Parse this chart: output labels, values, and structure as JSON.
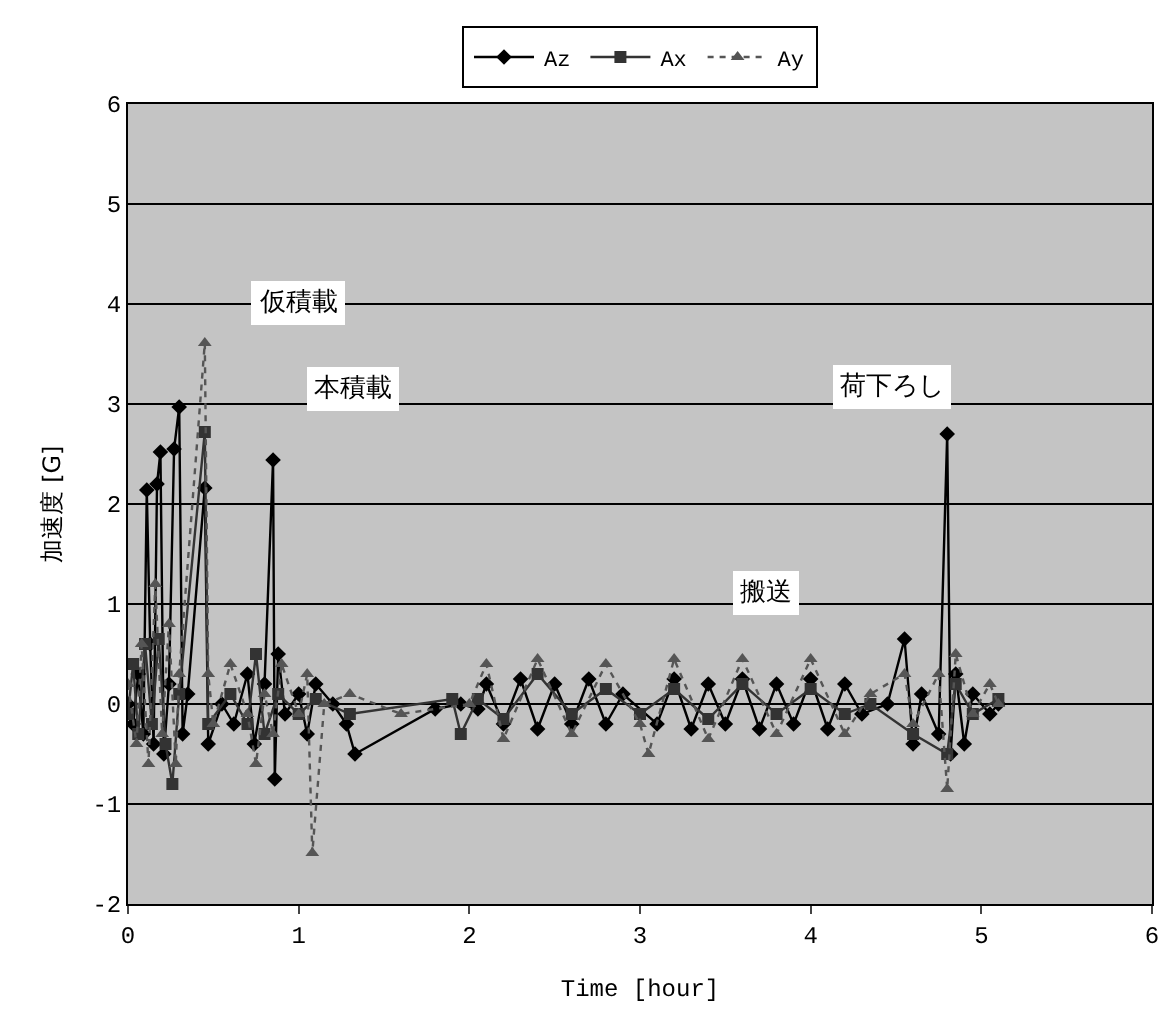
{
  "chart_data": {
    "type": "line",
    "xlabel": "Time [hour]",
    "ylabel": "加速度 [G]",
    "xlim": [
      0,
      6
    ],
    "xticks": [
      0,
      1,
      2,
      3,
      4,
      5,
      6
    ],
    "ylim": [
      -2,
      6
    ],
    "yticks": [
      -2,
      -1,
      0,
      1,
      2,
      3,
      4,
      5,
      6
    ],
    "grid": "y",
    "legend": "top",
    "annotations": [
      "仮積載",
      "本積載",
      "荷下ろし",
      "搬送"
    ],
    "series": [
      {
        "name": "Az",
        "color": "#000000",
        "marker": "diamond",
        "line_style": "solid",
        "x": [
          0,
          0.03,
          0.06,
          0.09,
          0.11,
          0.13,
          0.15,
          0.17,
          0.19,
          0.21,
          0.24,
          0.27,
          0.3,
          0.32,
          0.35,
          0.45,
          0.47,
          0.55,
          0.62,
          0.7,
          0.74,
          0.8,
          0.85,
          0.86,
          0.88,
          0.92,
          1,
          1.05,
          1.1,
          1.2,
          1.28,
          1.33,
          1.8,
          1.95,
          2.05,
          2.1,
          2.2,
          2.3,
          2.4,
          2.5,
          2.6,
          2.7,
          2.8,
          2.9,
          3.1,
          3.2,
          3.3,
          3.4,
          3.5,
          3.6,
          3.7,
          3.8,
          3.9,
          4,
          4.1,
          4.2,
          4.3,
          4.45,
          4.55,
          4.6,
          4.65,
          4.75,
          4.8,
          4.82,
          4.85,
          4.9,
          4.95,
          5.05,
          5.1
        ],
        "values": [
          0,
          -0.2,
          0.3,
          -0.3,
          2.14,
          0.6,
          -0.4,
          2.2,
          2.52,
          -0.5,
          0.2,
          2.55,
          2.97,
          -0.3,
          0.1,
          2.16,
          -0.4,
          0,
          -0.2,
          0.3,
          -0.4,
          0.2,
          2.44,
          -0.75,
          0.5,
          -0.1,
          0.1,
          -0.3,
          0.2,
          0,
          -0.2,
          -0.5,
          -0.05,
          0,
          -0.05,
          0.2,
          -0.2,
          0.25,
          -0.25,
          0.2,
          -0.2,
          0.25,
          -0.2,
          0.1,
          -0.2,
          0.25,
          -0.25,
          0.2,
          -0.2,
          0.25,
          -0.25,
          0.2,
          -0.2,
          0.25,
          -0.25,
          0.2,
          -0.1,
          0,
          0.65,
          -0.4,
          0.1,
          -0.3,
          2.7,
          -0.5,
          0.3,
          -0.4,
          0.1,
          -0.1,
          0
        ]
      },
      {
        "name": "Ax",
        "color": "#333333",
        "marker": "square",
        "line_style": "solid",
        "x": [
          0,
          0.03,
          0.06,
          0.1,
          0.14,
          0.18,
          0.22,
          0.26,
          0.3,
          0.45,
          0.47,
          0.6,
          0.7,
          0.75,
          0.8,
          0.88,
          1,
          1.1,
          1.3,
          1.9,
          1.95,
          2.05,
          2.2,
          2.4,
          2.6,
          2.8,
          3,
          3.2,
          3.4,
          3.6,
          3.8,
          4,
          4.2,
          4.35,
          4.6,
          4.8,
          4.85,
          4.95,
          5.1
        ],
        "values": [
          -0.1,
          0.4,
          -0.3,
          0.6,
          -0.2,
          0.65,
          -0.4,
          -0.8,
          0.1,
          2.72,
          -0.2,
          0.1,
          -0.2,
          0.5,
          -0.3,
          0.1,
          -0.1,
          0.05,
          -0.1,
          0.05,
          -0.3,
          0.05,
          -0.15,
          0.3,
          -0.1,
          0.15,
          -0.1,
          0.15,
          -0.15,
          0.2,
          -0.1,
          0.15,
          -0.1,
          0,
          -0.3,
          -0.5,
          0.2,
          -0.1,
          0.05
        ]
      },
      {
        "name": "Ay",
        "color": "#555555",
        "marker": "triangle",
        "line_style": "dotted",
        "x": [
          0,
          0.05,
          0.08,
          0.12,
          0.16,
          0.2,
          0.24,
          0.28,
          0.3,
          0.45,
          0.47,
          0.5,
          0.6,
          0.7,
          0.75,
          0.8,
          0.85,
          0.9,
          1,
          1.05,
          1.08,
          1.15,
          1.3,
          1.6,
          2,
          2.1,
          2.2,
          2.4,
          2.6,
          2.8,
          3,
          3.05,
          3.2,
          3.4,
          3.6,
          3.8,
          4,
          4.2,
          4.35,
          4.55,
          4.6,
          4.75,
          4.8,
          4.85,
          4.95,
          5.05,
          5.1
        ],
        "values": [
          0.2,
          -0.4,
          0.6,
          -0.6,
          1.2,
          -0.3,
          0.8,
          -0.6,
          0.3,
          3.61,
          0.3,
          -0.2,
          0.4,
          -0.1,
          -0.6,
          0.1,
          -0.3,
          0.4,
          -0.1,
          0.3,
          -1.49,
          0,
          0.1,
          -0.1,
          0,
          0.4,
          -0.35,
          0.45,
          -0.3,
          0.4,
          -0.2,
          -0.5,
          0.45,
          -0.35,
          0.45,
          -0.3,
          0.45,
          -0.3,
          0.1,
          0.3,
          -0.2,
          0.3,
          -0.85,
          0.5,
          -0.1,
          0.2,
          0
        ]
      }
    ]
  }
}
